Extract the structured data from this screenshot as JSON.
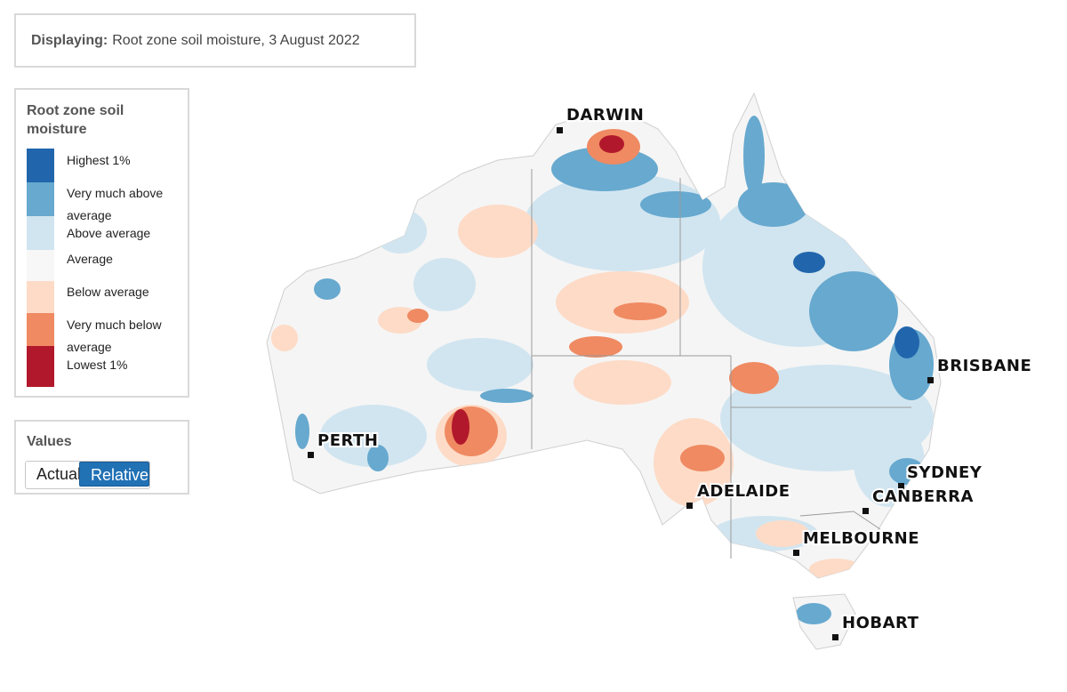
{
  "display": {
    "label": "Displaying:",
    "value": "Root zone soil moisture, 3 August 2022"
  },
  "legend": {
    "title": "Root zone soil moisture",
    "items": [
      {
        "label": "Highest 1%",
        "color": "#2166ac"
      },
      {
        "label": "Very much above average",
        "color": "#67a9cf"
      },
      {
        "label": "Above average",
        "color": "#d1e5f0"
      },
      {
        "label": "Average",
        "color": "#f7f7f7"
      },
      {
        "label": "Below average",
        "color": "#fddbc7"
      },
      {
        "label": "Very much below average",
        "color": "#ef8a62"
      },
      {
        "label": "Lowest 1%",
        "color": "#b2182b"
      }
    ]
  },
  "values": {
    "title": "Values",
    "options": [
      "Actual",
      "Relative"
    ],
    "selected": "Relative"
  },
  "map": {
    "cities": [
      "DARWIN",
      "BRISBANE",
      "PERTH",
      "SYDNEY",
      "CANBERRA",
      "ADELAIDE",
      "MELBOURNE",
      "HOBART"
    ]
  }
}
